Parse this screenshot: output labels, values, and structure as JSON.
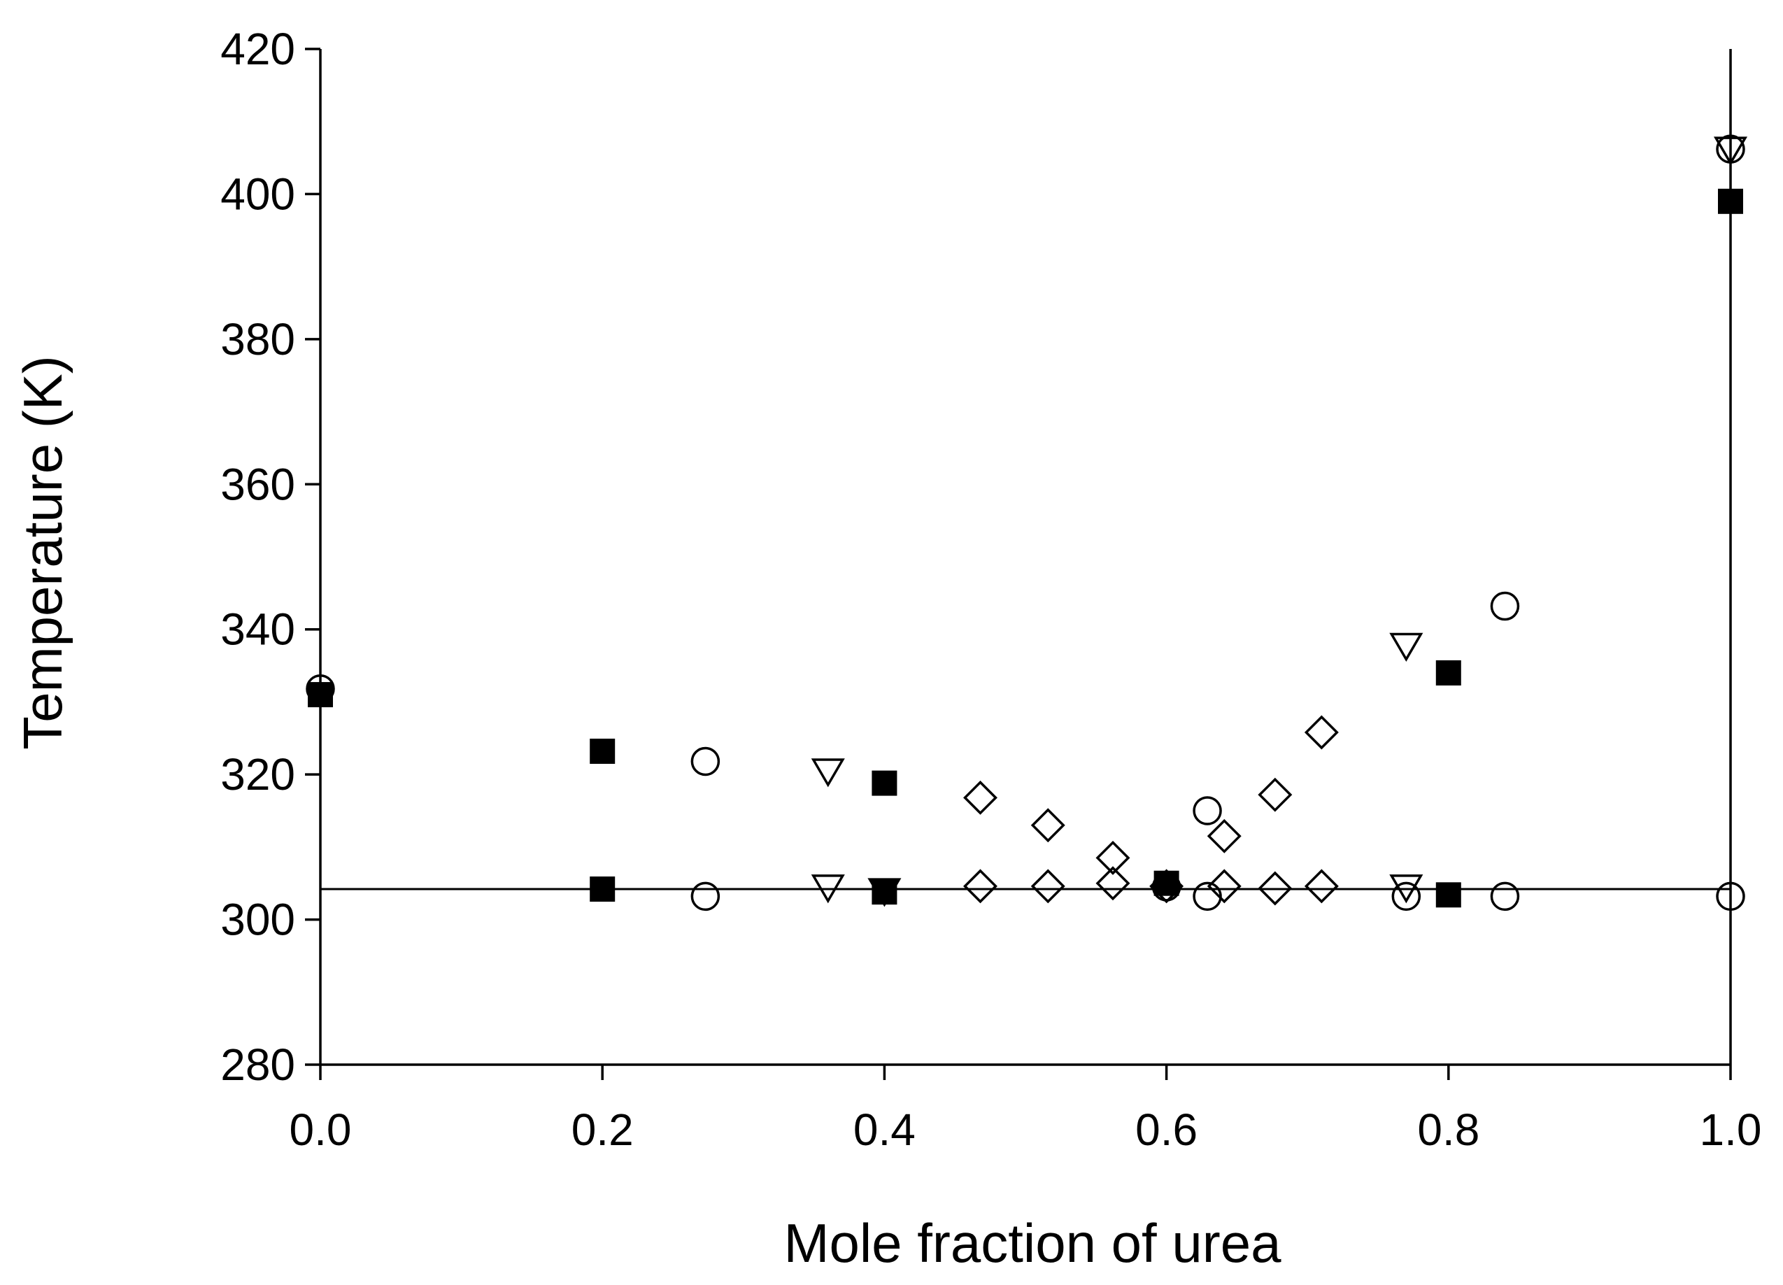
{
  "chart_data": {
    "type": "scatter",
    "title": "",
    "xlabel": "Mole fraction of urea",
    "ylabel": "Temperature (K)",
    "xlim": [
      0.0,
      1.0
    ],
    "ylim": [
      280,
      420
    ],
    "x_ticks": [
      "0.0",
      "0.2",
      "0.4",
      "0.6",
      "0.8",
      "1.0"
    ],
    "y_ticks": [
      "280",
      "300",
      "320",
      "340",
      "360",
      "380",
      "400",
      "420"
    ],
    "grid": false,
    "legend": "none",
    "reference_line": {
      "y": 304.2
    },
    "series": [
      {
        "marker": "filled-square",
        "points": [
          [
            0.0,
            331.0
          ],
          [
            0.2,
            323.2
          ],
          [
            0.4,
            318.8
          ],
          [
            0.6,
            305.0
          ],
          [
            0.8,
            334.0
          ],
          [
            1.0,
            399.0
          ],
          [
            0.2,
            304.2
          ],
          [
            0.4,
            303.8
          ],
          [
            0.8,
            303.4
          ]
        ]
      },
      {
        "marker": "open-circle",
        "points": [
          [
            0.0,
            331.8
          ],
          [
            0.273,
            321.8
          ],
          [
            0.629,
            315.0
          ],
          [
            0.84,
            343.2
          ],
          [
            1.0,
            406.2
          ],
          [
            0.273,
            303.2
          ],
          [
            0.6,
            304.5
          ],
          [
            0.629,
            303.2
          ],
          [
            0.77,
            303.2
          ],
          [
            0.84,
            303.2
          ],
          [
            1.0,
            303.2
          ]
        ]
      },
      {
        "marker": "open-triangle-down",
        "points": [
          [
            0.36,
            320.5
          ],
          [
            0.77,
            337.8
          ],
          [
            1.0,
            406.2
          ],
          [
            0.36,
            304.5
          ],
          [
            0.4,
            304.0
          ],
          [
            0.77,
            304.5
          ]
        ]
      },
      {
        "marker": "open-diamond",
        "points": [
          [
            0.468,
            316.8
          ],
          [
            0.516,
            313.0
          ],
          [
            0.562,
            308.5
          ],
          [
            0.641,
            311.5
          ],
          [
            0.677,
            317.2
          ],
          [
            0.71,
            325.8
          ],
          [
            0.468,
            304.6
          ],
          [
            0.516,
            304.6
          ],
          [
            0.562,
            305.0
          ],
          [
            0.6,
            304.6
          ],
          [
            0.641,
            304.6
          ],
          [
            0.677,
            304.3
          ],
          [
            0.71,
            304.6
          ]
        ]
      }
    ]
  }
}
